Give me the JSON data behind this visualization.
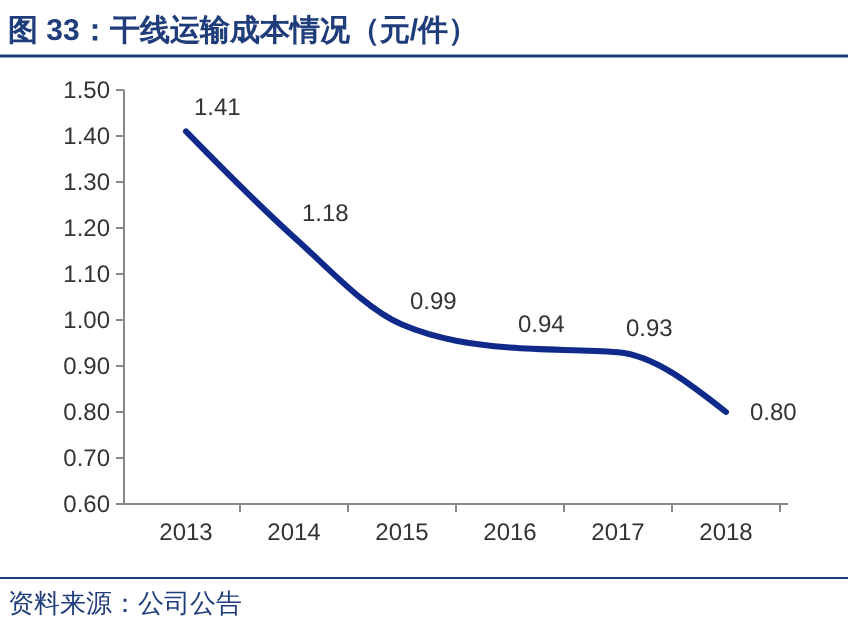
{
  "chart_data": {
    "type": "line",
    "title": "图 33：干线运输成本情况（元/件）",
    "categories": [
      "2013",
      "2014",
      "2015",
      "2016",
      "2017",
      "2018"
    ],
    "series": [
      {
        "color": "#0f2a8a",
        "values": [
          1.41,
          1.18,
          0.99,
          0.94,
          0.93,
          0.8
        ]
      }
    ],
    "value_labels": [
      "1.41",
      "1.18",
      "0.99",
      "0.94",
      "0.93",
      "0.80"
    ],
    "ylim": [
      0.6,
      1.5
    ],
    "yticks": [
      {
        "value": 0.6,
        "label": "0.60"
      },
      {
        "value": 0.7,
        "label": "0.70"
      },
      {
        "value": 0.8,
        "label": "0.80"
      },
      {
        "value": 0.9,
        "label": "0.90"
      },
      {
        "value": 1.0,
        "label": "1.00"
      },
      {
        "value": 1.1,
        "label": "1.10"
      },
      {
        "value": 1.2,
        "label": "1.20"
      },
      {
        "value": 1.3,
        "label": "1.30"
      },
      {
        "value": 1.4,
        "label": "1.40"
      },
      {
        "value": 1.5,
        "label": "1.50"
      }
    ],
    "grid": false,
    "marker": "none",
    "line_style": "solid",
    "annotations": [
      "资料来源：公司公告"
    ]
  }
}
